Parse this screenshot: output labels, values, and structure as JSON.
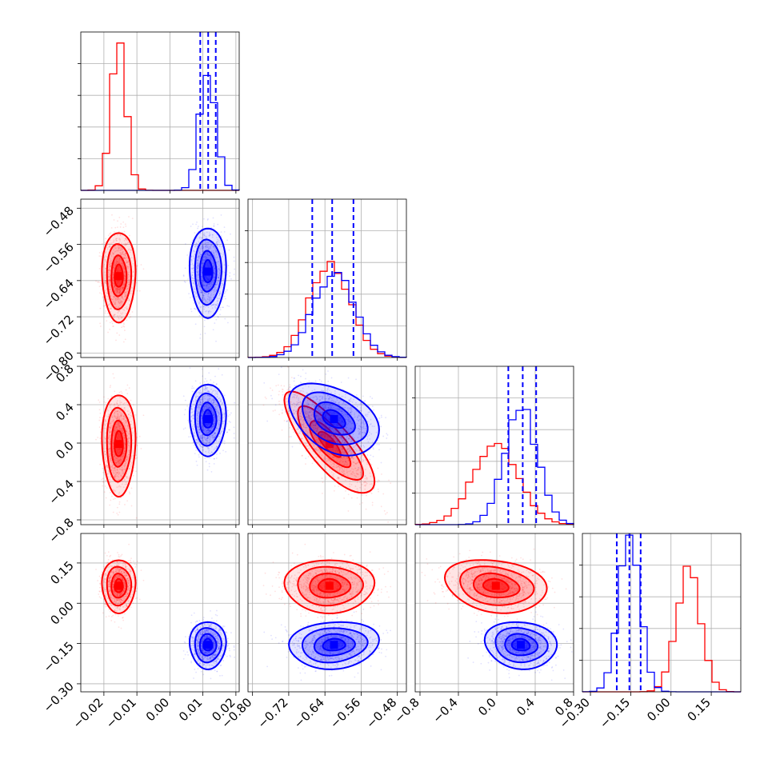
{
  "colors": {
    "series_a": "#ff0000",
    "series_b": "#0000ff",
    "grid": "#b0b0b0",
    "axes": "#000000"
  },
  "chart_data": {
    "type": "corner",
    "title": "",
    "parameters": [
      {
        "index": 0,
        "range": [
          -0.027,
          0.021
        ],
        "ticks": [
          "−0.02",
          "−0.01",
          "0.00",
          "0.01",
          "0.02"
        ],
        "tick_values": [
          -0.02,
          -0.01,
          0.0,
          0.01,
          0.02
        ]
      },
      {
        "index": 1,
        "range": [
          -0.81,
          -0.46
        ],
        "ticks": [
          "−0.80",
          "−0.72",
          "−0.64",
          "−0.56",
          "−0.48"
        ],
        "tick_values": [
          -0.8,
          -0.72,
          -0.64,
          -0.56,
          -0.48
        ]
      },
      {
        "index": 2,
        "range": [
          -0.85,
          0.8
        ],
        "ticks": [
          "−0.8",
          "−0.4",
          "0.0",
          "0.4",
          "0.8"
        ],
        "tick_values": [
          -0.8,
          -0.4,
          0.0,
          0.4,
          0.8
        ]
      },
      {
        "index": 3,
        "range": [
          -0.33,
          0.26
        ],
        "ticks": [
          "−0.30",
          "−0.15",
          "0.00",
          "0.15"
        ],
        "tick_values": [
          -0.3,
          -0.15,
          0.0,
          0.15
        ]
      }
    ],
    "series": [
      {
        "name": "",
        "color": "red",
        "mean": [
          -0.0155,
          -0.63,
          -0.01,
          0.065
        ],
        "sigma": [
          0.0023,
          0.045,
          0.24,
          0.045
        ],
        "correlation": [
          [
            0,
            1,
            0.0
          ],
          [
            0,
            2,
            0.0
          ],
          [
            0,
            3,
            0.0
          ],
          [
            1,
            2,
            -0.8
          ],
          [
            1,
            3,
            0.0
          ],
          [
            2,
            3,
            -0.2
          ]
        ]
      },
      {
        "name": "",
        "color": "blue",
        "mean": [
          0.0115,
          -0.62,
          0.25,
          -0.155
        ],
        "sigma": [
          0.0025,
          0.045,
          0.17,
          0.04
        ],
        "correlation": [
          [
            0,
            1,
            0.0
          ],
          [
            0,
            2,
            0.0
          ],
          [
            0,
            3,
            0.0
          ],
          [
            1,
            2,
            -0.4
          ],
          [
            1,
            3,
            0.1
          ],
          [
            2,
            3,
            -0.1
          ]
        ]
      }
    ],
    "quantile_lines": {
      "color": "blue",
      "values": [
        [
          0.0092,
          0.0116,
          0.0139
        ],
        [
          -0.668,
          -0.624,
          -0.577
        ],
        [
          0.12,
          0.27,
          0.41
        ],
        [
          -0.202,
          -0.155,
          -0.113
        ]
      ]
    },
    "histogram_peak_counts": {
      "red": [
        1.0,
        0.62,
        0.52,
        0.8
      ],
      "blue": [
        0.78,
        0.56,
        0.78,
        1.0
      ]
    },
    "grid": true,
    "legend": "none"
  }
}
